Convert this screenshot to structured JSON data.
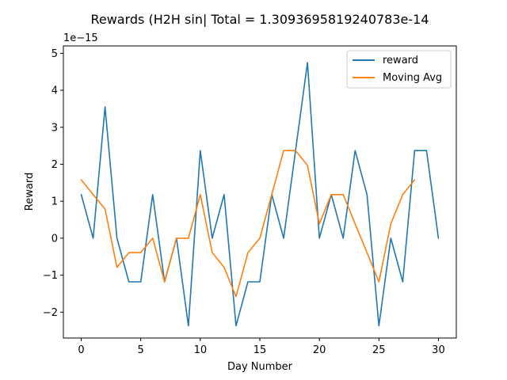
{
  "chart_data": {
    "type": "line",
    "title": "Rewards (H2H sin| Total = 1.3093695819240783e-14",
    "xlabel": "Day Number",
    "ylabel": "Reward",
    "y_offset_label": "1e−15",
    "xlim": [
      -1.5,
      31.5
    ],
    "ylim": [
      -2.7,
      5.2
    ],
    "xticks": [
      0,
      5,
      10,
      15,
      20,
      25,
      30
    ],
    "yticks": [
      -2,
      -1,
      0,
      1,
      2,
      3,
      4,
      5
    ],
    "ytick_labels": [
      "−2",
      "−1",
      "0",
      "1",
      "2",
      "3",
      "4",
      "5"
    ],
    "grid": false,
    "legend_position": "top-right",
    "series": [
      {
        "name": "reward",
        "color": "#1f77b4",
        "x": [
          0,
          1,
          2,
          3,
          4,
          5,
          6,
          7,
          8,
          9,
          10,
          11,
          12,
          13,
          14,
          15,
          16,
          17,
          18,
          19,
          20,
          21,
          22,
          23,
          24,
          25,
          26,
          27,
          28,
          29,
          30
        ],
        "values": [
          1.18,
          0,
          3.55,
          0,
          -1.18,
          -1.18,
          1.18,
          -1.18,
          0,
          -2.37,
          2.37,
          0,
          1.18,
          -2.37,
          -1.18,
          -1.18,
          1.18,
          0,
          2.37,
          4.75,
          0,
          1.18,
          0,
          2.37,
          1.18,
          -2.37,
          0,
          -1.18,
          2.37,
          2.37,
          0
        ]
      },
      {
        "name": "Moving Avg",
        "color": "#ff7f0e",
        "x": [
          0,
          1,
          2,
          3,
          4,
          5,
          6,
          7,
          8,
          9,
          10,
          11,
          12,
          13,
          14,
          15,
          16,
          17,
          18,
          19,
          20,
          21,
          22,
          23,
          24,
          25,
          26,
          27,
          28
        ],
        "values": [
          1.58,
          1.18,
          0.79,
          -0.79,
          -0.39,
          -0.39,
          0,
          -1.18,
          0,
          0,
          1.18,
          -0.39,
          -0.79,
          -1.58,
          -0.39,
          0,
          1.18,
          2.37,
          2.37,
          1.97,
          0.39,
          1.18,
          1.18,
          0.39,
          -0.39,
          -1.18,
          0.39,
          1.18,
          1.58
        ]
      }
    ]
  }
}
